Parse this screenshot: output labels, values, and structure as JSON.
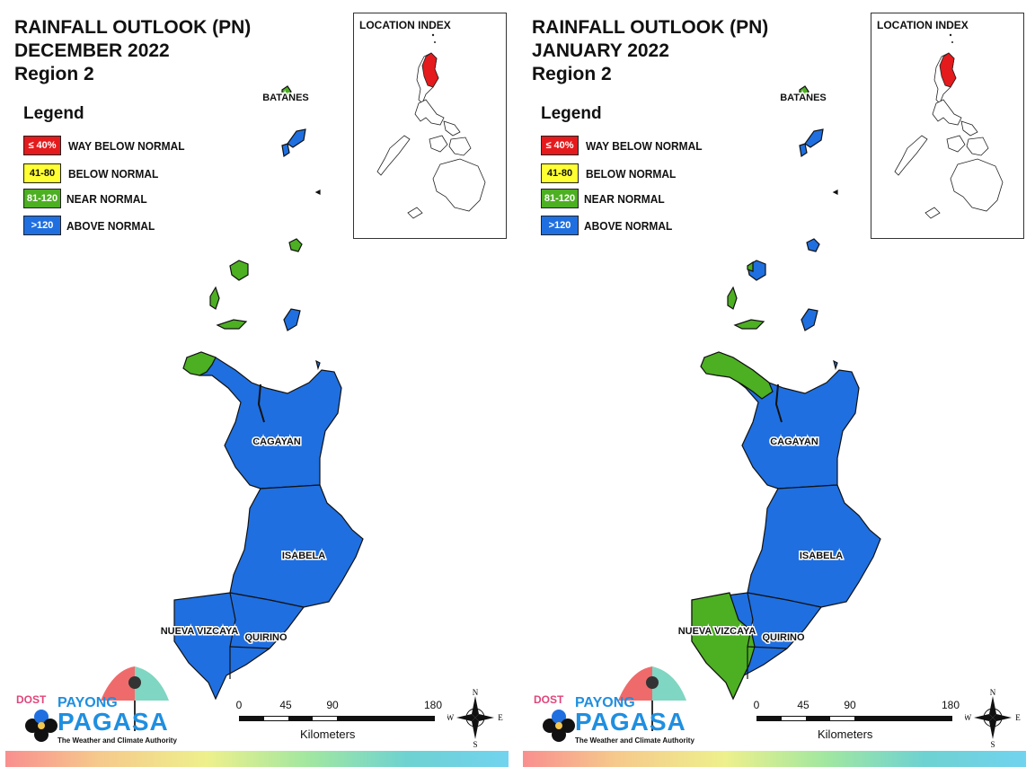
{
  "legend_heading": "Legend",
  "legend": [
    {
      "range": "≤ 40%",
      "label": "WAY BELOW NORMAL",
      "color": "#e41a1c",
      "text_color": "#ffffff"
    },
    {
      "range": "41-80",
      "label": "BELOW NORMAL",
      "color": "#ffff33",
      "text_color": "#111111"
    },
    {
      "range": "81-120",
      "label": "NEAR NORMAL",
      "color": "#4daf22",
      "text_color": "#ffffff"
    },
    {
      "range": ">120",
      "label": "ABOVE NORMAL",
      "color": "#1f6fe0",
      "text_color": "#ffffff"
    }
  ],
  "location_index_title": "LOCATION INDEX",
  "scale": {
    "ticks": [
      "0",
      "45",
      "90",
      "180"
    ],
    "unit": "Kilometers"
  },
  "compass": {
    "n": "N",
    "s": "S",
    "e": "E",
    "w": "W"
  },
  "logo": {
    "dost": "DOST",
    "payong": "PAYONG",
    "pagasa": "PAGASA",
    "tagline": "The Weather and Climate Authority"
  },
  "panels": [
    {
      "title_line1": "RAINFALL OUTLOOK (PN)",
      "title_line2": "DECEMBER 2022",
      "title_line3": "Region 2",
      "provinces": {
        "batanes": {
          "label": "BATANES",
          "category": "mixed"
        },
        "cagayan": {
          "label": "CAGAYAN",
          "category": "ABOVE NORMAL"
        },
        "isabela": {
          "label": "ISABELA",
          "category": "ABOVE NORMAL"
        },
        "nueva_vizcaya": {
          "label": "NUEVA VIZCAYA",
          "category": "ABOVE NORMAL"
        },
        "quirino": {
          "label": "QUIRINO",
          "category": "ABOVE NORMAL"
        }
      }
    },
    {
      "title_line1": "RAINFALL OUTLOOK (PN)",
      "title_line2": "JANUARY 2022",
      "title_line3": "Region 2",
      "provinces": {
        "batanes": {
          "label": "BATANES",
          "category": "mixed"
        },
        "cagayan": {
          "label": "CAGAYAN",
          "category": "ABOVE NORMAL"
        },
        "isabela": {
          "label": "ISABELA",
          "category": "ABOVE NORMAL"
        },
        "nueva_vizcaya": {
          "label": "NUEVA VIZCAYA",
          "category": "NEAR NORMAL"
        },
        "quirino": {
          "label": "QUIRINO",
          "category": "ABOVE NORMAL"
        }
      }
    }
  ]
}
